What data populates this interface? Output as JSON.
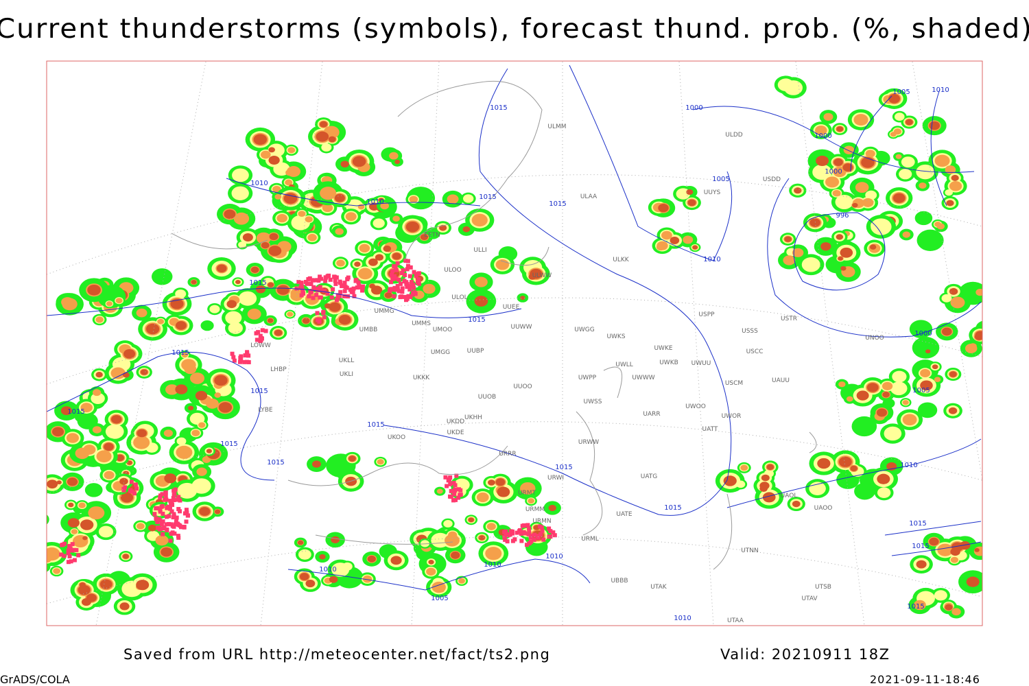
{
  "header": {
    "title": "Current thunderstorms (symbols), forecast thund. prob. (%, shaded)"
  },
  "footer": {
    "saved": "Saved from URL http://meteocenter.net/fact/ts2.png",
    "valid": "Valid: 20210911 18Z",
    "software": "GrADS/COLA",
    "timestamp": "2021-09-11-18:46"
  },
  "stations": [
    "ULMM",
    "ULDD",
    "USDD",
    "UUYS",
    "ULAA",
    "EETN",
    "ULLI",
    "ULOO",
    "ULOL",
    "ULWW",
    "ULKK",
    "USPP",
    "USTR",
    "USSS",
    "UUEE",
    "UUWW",
    "UMMS",
    "UMOO",
    "UMBB",
    "UMMG",
    "UWGG",
    "UWKS",
    "UWKE",
    "UWKB",
    "UWUU",
    "USCC",
    "UNOO",
    "UMGG",
    "UUBP",
    "UKLL",
    "UKLI",
    "UKKK",
    "UWLL",
    "UWWW",
    "UWPP",
    "USCM",
    "UAUU",
    "UUOO",
    "UUOB",
    "UWSS",
    "UARR",
    "UWOO",
    "UWOR",
    "UATT",
    "UKHH",
    "UKDD",
    "UKDE",
    "URWW",
    "UKOO",
    "URRR",
    "UATG",
    "URWI",
    "URMT",
    "UATE",
    "URMM",
    "URMN",
    "URML",
    "UTNN",
    "UAOL",
    "UAOO",
    "UBBB",
    "UTAK",
    "UTSB",
    "UTAV",
    "UTAA",
    "LYBE",
    "LHBP",
    "LOWW"
  ],
  "isobars": [
    "1015",
    "1000",
    "1000",
    "1005",
    "1010",
    "1010",
    "1010",
    "1015",
    "1015",
    "1005",
    "1000",
    "996",
    "1010",
    "1015",
    "1015",
    "1015",
    "1000",
    "1015",
    "1015",
    "1015",
    "1015",
    "1015",
    "1005",
    "1015",
    "1010",
    "1015",
    "1015",
    "1015",
    "1010",
    "1010",
    "1010",
    "1005",
    "1010",
    "1015"
  ]
}
